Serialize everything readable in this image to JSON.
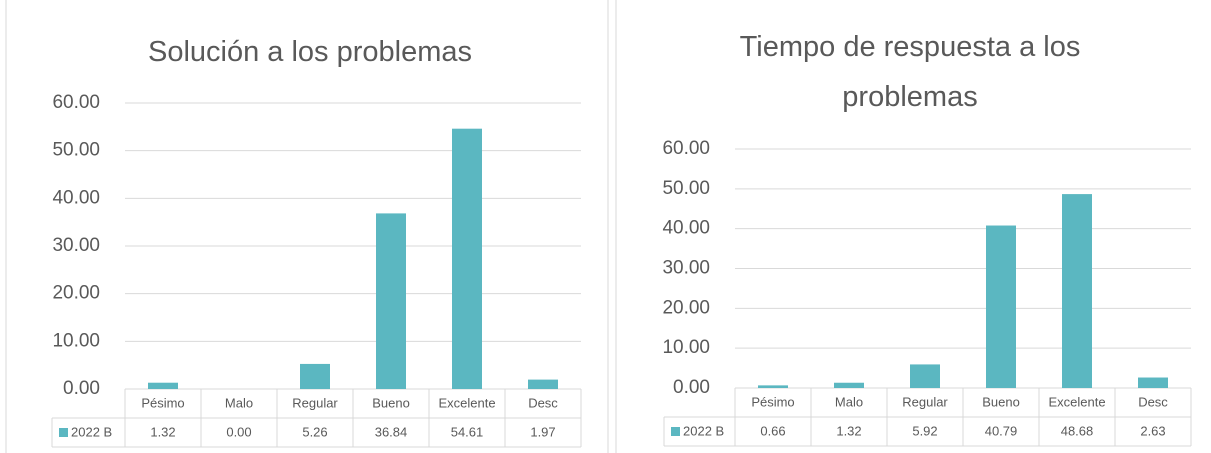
{
  "chart_data": [
    {
      "type": "bar",
      "title": "Solución a los problemas",
      "categories": [
        "Pésimo",
        "Malo",
        "Regular",
        "Bueno",
        "Excelente",
        "Desc"
      ],
      "series": [
        {
          "name": "2022 B",
          "color": "#5bb7c1",
          "values": [
            1.32,
            0,
            5.26,
            36.84,
            54.61,
            1.97
          ],
          "value_labels": [
            "1.32",
            "0.00",
            "5.26",
            "36.84",
            "54.61",
            "1.97"
          ]
        }
      ],
      "ylim": [
        0,
        60
      ],
      "yticks": [
        {
          "value": 0,
          "label": "0.00"
        },
        {
          "value": 10,
          "label": "10.00"
        },
        {
          "value": 20,
          "label": "20.00"
        },
        {
          "value": 30,
          "label": "30.00"
        },
        {
          "value": 40,
          "label": "40.00"
        },
        {
          "value": 50,
          "label": "50.00"
        },
        {
          "value": 60,
          "label": "60.00"
        }
      ],
      "grid": true
    },
    {
      "type": "bar",
      "title": "Tiempo de respuesta a los problemas",
      "categories": [
        "Pésimo",
        "Malo",
        "Regular",
        "Bueno",
        "Excelente",
        "Desc"
      ],
      "series": [
        {
          "name": "2022 B",
          "color": "#5bb7c1",
          "values": [
            0.66,
            1.32,
            5.92,
            40.79,
            48.68,
            2.63
          ],
          "value_labels": [
            "0.66",
            "1.32",
            "5.92",
            "40.79",
            "48.68",
            "2.63"
          ]
        }
      ],
      "ylim": [
        0,
        60
      ],
      "yticks": [
        {
          "value": 0,
          "label": "0.00"
        },
        {
          "value": 10,
          "label": "10.00"
        },
        {
          "value": 20,
          "label": "20.00"
        },
        {
          "value": 30,
          "label": "30.00"
        },
        {
          "value": 40,
          "label": "40.00"
        },
        {
          "value": 50,
          "label": "50.00"
        },
        {
          "value": 60,
          "label": "60.00"
        }
      ],
      "grid": true
    }
  ]
}
